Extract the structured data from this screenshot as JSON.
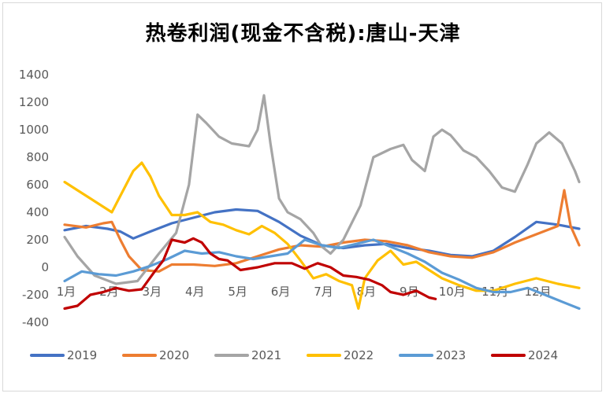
{
  "chart_data": {
    "type": "line",
    "title": "热卷利润(现金不含税):唐山-天津",
    "xlabel": "",
    "ylabel": "",
    "ylim": [
      -400,
      1400
    ],
    "yticks": [
      -400,
      -200,
      0,
      200,
      400,
      600,
      800,
      1000,
      1200,
      1400
    ],
    "x_range": [
      0,
      12
    ],
    "xticks": [
      {
        "x": 0,
        "label": "1月"
      },
      {
        "x": 1,
        "label": "2月"
      },
      {
        "x": 2,
        "label": "3月"
      },
      {
        "x": 3,
        "label": "4月"
      },
      {
        "x": 4,
        "label": "5月"
      },
      {
        "x": 5,
        "label": "6月"
      },
      {
        "x": 6,
        "label": "7月"
      },
      {
        "x": 7,
        "label": "8月"
      },
      {
        "x": 8,
        "label": "9月"
      },
      {
        "x": 9,
        "label": "10月"
      },
      {
        "x": 10,
        "label": "11月"
      },
      {
        "x": 11,
        "label": "12月"
      }
    ],
    "grid": false,
    "legend_position": "bottom",
    "series": [
      {
        "name": "2019",
        "color": "#4472C4",
        "points": [
          [
            0,
            270
          ],
          [
            0.5,
            300
          ],
          [
            1,
            280
          ],
          [
            1.3,
            260
          ],
          [
            1.6,
            210
          ],
          [
            2,
            260
          ],
          [
            2.5,
            320
          ],
          [
            3,
            360
          ],
          [
            3.5,
            400
          ],
          [
            4,
            420
          ],
          [
            4.5,
            410
          ],
          [
            5,
            330
          ],
          [
            5.5,
            230
          ],
          [
            6,
            160
          ],
          [
            6.5,
            140
          ],
          [
            7,
            160
          ],
          [
            7.5,
            170
          ],
          [
            8,
            140
          ],
          [
            8.5,
            120
          ],
          [
            9,
            90
          ],
          [
            9.5,
            80
          ],
          [
            10,
            120
          ],
          [
            10.5,
            220
          ],
          [
            11,
            330
          ],
          [
            11.5,
            310
          ],
          [
            12,
            280
          ]
        ]
      },
      {
        "name": "2020",
        "color": "#ED7D31",
        "points": [
          [
            0,
            310
          ],
          [
            0.5,
            290
          ],
          [
            0.9,
            320
          ],
          [
            1.1,
            330
          ],
          [
            1.3,
            200
          ],
          [
            1.5,
            80
          ],
          [
            1.8,
            -20
          ],
          [
            2.2,
            -30
          ],
          [
            2.5,
            20
          ],
          [
            3,
            20
          ],
          [
            3.5,
            10
          ],
          [
            4,
            30
          ],
          [
            4.5,
            80
          ],
          [
            5,
            130
          ],
          [
            5.5,
            160
          ],
          [
            6,
            150
          ],
          [
            6.5,
            180
          ],
          [
            7,
            200
          ],
          [
            7.5,
            190
          ],
          [
            8,
            160
          ],
          [
            8.5,
            110
          ],
          [
            9,
            80
          ],
          [
            9.5,
            70
          ],
          [
            10,
            110
          ],
          [
            10.5,
            180
          ],
          [
            11,
            240
          ],
          [
            11.5,
            300
          ],
          [
            11.65,
            560
          ],
          [
            11.8,
            300
          ],
          [
            12,
            160
          ]
        ]
      },
      {
        "name": "2021",
        "color": "#A5A5A5",
        "points": [
          [
            0,
            220
          ],
          [
            0.3,
            80
          ],
          [
            0.7,
            -60
          ],
          [
            1.2,
            -120
          ],
          [
            1.7,
            -100
          ],
          [
            2.2,
            100
          ],
          [
            2.6,
            250
          ],
          [
            2.9,
            600
          ],
          [
            3.1,
            1110
          ],
          [
            3.3,
            1050
          ],
          [
            3.6,
            950
          ],
          [
            3.9,
            900
          ],
          [
            4.3,
            880
          ],
          [
            4.5,
            1000
          ],
          [
            4.65,
            1250
          ],
          [
            4.8,
            900
          ],
          [
            5,
            500
          ],
          [
            5.2,
            400
          ],
          [
            5.5,
            350
          ],
          [
            5.8,
            250
          ],
          [
            6,
            150
          ],
          [
            6.2,
            100
          ],
          [
            6.5,
            200
          ],
          [
            6.9,
            450
          ],
          [
            7.2,
            800
          ],
          [
            7.6,
            860
          ],
          [
            7.9,
            890
          ],
          [
            8.1,
            780
          ],
          [
            8.4,
            700
          ],
          [
            8.6,
            950
          ],
          [
            8.8,
            1000
          ],
          [
            9,
            960
          ],
          [
            9.3,
            850
          ],
          [
            9.6,
            800
          ],
          [
            9.9,
            700
          ],
          [
            10.2,
            580
          ],
          [
            10.5,
            550
          ],
          [
            10.8,
            750
          ],
          [
            11,
            900
          ],
          [
            11.3,
            980
          ],
          [
            11.6,
            900
          ],
          [
            11.9,
            700
          ],
          [
            12,
            620
          ]
        ]
      },
      {
        "name": "2022",
        "color": "#FFC000",
        "points": [
          [
            0,
            620
          ],
          [
            0.3,
            560
          ],
          [
            0.6,
            500
          ],
          [
            0.9,
            440
          ],
          [
            1.1,
            400
          ],
          [
            1.4,
            580
          ],
          [
            1.6,
            700
          ],
          [
            1.8,
            760
          ],
          [
            2,
            660
          ],
          [
            2.2,
            520
          ],
          [
            2.5,
            380
          ],
          [
            2.8,
            380
          ],
          [
            3.1,
            400
          ],
          [
            3.4,
            330
          ],
          [
            3.7,
            310
          ],
          [
            4,
            270
          ],
          [
            4.3,
            240
          ],
          [
            4.6,
            300
          ],
          [
            4.9,
            250
          ],
          [
            5.2,
            170
          ],
          [
            5.5,
            50
          ],
          [
            5.8,
            -80
          ],
          [
            6.1,
            -50
          ],
          [
            6.4,
            -100
          ],
          [
            6.7,
            -130
          ],
          [
            6.85,
            -300
          ],
          [
            7,
            -80
          ],
          [
            7.3,
            50
          ],
          [
            7.6,
            120
          ],
          [
            7.9,
            20
          ],
          [
            8.2,
            40
          ],
          [
            8.5,
            -20
          ],
          [
            8.8,
            -80
          ],
          [
            9.2,
            -130
          ],
          [
            9.6,
            -170
          ],
          [
            10,
            -170
          ],
          [
            10.5,
            -120
          ],
          [
            11,
            -80
          ],
          [
            11.5,
            -120
          ],
          [
            12,
            -150
          ]
        ]
      },
      {
        "name": "2023",
        "color": "#5B9BD5",
        "points": [
          [
            0,
            -100
          ],
          [
            0.4,
            -30
          ],
          [
            0.8,
            -50
          ],
          [
            1.2,
            -60
          ],
          [
            1.6,
            -30
          ],
          [
            2,
            10
          ],
          [
            2.4,
            60
          ],
          [
            2.8,
            120
          ],
          [
            3.2,
            100
          ],
          [
            3.6,
            110
          ],
          [
            4,
            80
          ],
          [
            4.4,
            60
          ],
          [
            4.8,
            80
          ],
          [
            5.2,
            100
          ],
          [
            5.6,
            200
          ],
          [
            6,
            160
          ],
          [
            6.4,
            140
          ],
          [
            6.8,
            170
          ],
          [
            7.2,
            200
          ],
          [
            7.6,
            150
          ],
          [
            8,
            100
          ],
          [
            8.4,
            40
          ],
          [
            8.8,
            -40
          ],
          [
            9.2,
            -90
          ],
          [
            9.6,
            -150
          ],
          [
            10,
            -180
          ],
          [
            10.4,
            -180
          ],
          [
            10.8,
            -150
          ],
          [
            11.2,
            -200
          ],
          [
            11.6,
            -250
          ],
          [
            12,
            -300
          ]
        ]
      },
      {
        "name": "2024",
        "color": "#C00000",
        "points": [
          [
            0,
            -300
          ],
          [
            0.3,
            -280
          ],
          [
            0.6,
            -200
          ],
          [
            0.9,
            -180
          ],
          [
            1.2,
            -150
          ],
          [
            1.5,
            -170
          ],
          [
            1.8,
            -160
          ],
          [
            2.1,
            -30
          ],
          [
            2.3,
            50
          ],
          [
            2.5,
            200
          ],
          [
            2.8,
            180
          ],
          [
            3,
            210
          ],
          [
            3.2,
            180
          ],
          [
            3.4,
            100
          ],
          [
            3.6,
            60
          ],
          [
            3.8,
            50
          ],
          [
            4.1,
            -20
          ],
          [
            4.5,
            0
          ],
          [
            4.9,
            30
          ],
          [
            5.3,
            30
          ],
          [
            5.6,
            -10
          ],
          [
            5.9,
            30
          ],
          [
            6.2,
            0
          ],
          [
            6.5,
            -60
          ],
          [
            6.8,
            -70
          ],
          [
            7.1,
            -90
          ],
          [
            7.4,
            -130
          ],
          [
            7.6,
            -180
          ],
          [
            7.9,
            -200
          ],
          [
            8.2,
            -170
          ],
          [
            8.5,
            -220
          ],
          [
            8.65,
            -230
          ]
        ]
      }
    ]
  }
}
